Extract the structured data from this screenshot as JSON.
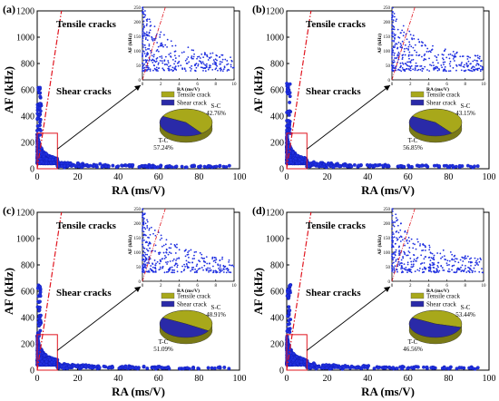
{
  "figure": {
    "colors": {
      "points": "#1f2fe0",
      "points_edge": "#0d17a8",
      "accent_red": "#e0141e",
      "pie_tensile": "#a8a81a",
      "pie_shear": "#2a2aa8",
      "axis": "#000000"
    },
    "labels": {
      "tensile_region": "Tensile cracks",
      "shear_region": "Shear cracks"
    },
    "legend": {
      "tensile": "Tensile crack",
      "shear": "Shear crack"
    }
  },
  "chart_data": [
    {
      "panel": "(a)",
      "type": "scatter",
      "xlabel": "RA (ms/V)",
      "ylabel": "AF (kHz)",
      "xlim": [
        0,
        100
      ],
      "ylim": [
        0,
        1200
      ],
      "xticks": [
        "0",
        "20",
        "40",
        "60",
        "80",
        "100"
      ],
      "yticks": [
        "0",
        "200",
        "400",
        "600",
        "800",
        "1000",
        "1200"
      ],
      "divider_slope_kHz_per_msV": 100,
      "inset": {
        "type": "scatter",
        "xlabel": "RA (ms/V)",
        "ylabel": "AF (kHz)",
        "xlim": [
          0,
          10
        ],
        "ylim": [
          0,
          250
        ],
        "xticks": [
          "0",
          "2",
          "4",
          "6",
          "8",
          "10"
        ],
        "yticks": [
          "0",
          "50",
          "100",
          "150",
          "200",
          "250"
        ]
      },
      "pie": {
        "type": "pie",
        "slices": [
          {
            "label": "T-C",
            "percent": "57.24%",
            "value": 57.24
          },
          {
            "label": "S-C",
            "percent": "42.76%",
            "value": 42.76
          }
        ]
      },
      "seed": 11
    },
    {
      "panel": "(b)",
      "type": "scatter",
      "xlabel": "RA (ms/V)",
      "ylabel": "AF (kHz)",
      "xlim": [
        0,
        100
      ],
      "ylim": [
        0,
        1200
      ],
      "xticks": [
        "0",
        "20",
        "40",
        "60",
        "80",
        "100"
      ],
      "yticks": [
        "0",
        "200",
        "400",
        "600",
        "800",
        "1000",
        "1200"
      ],
      "divider_slope_kHz_per_msV": 100,
      "inset": {
        "type": "scatter",
        "xlabel": "RA (ms/V)",
        "ylabel": "AF (kHz)",
        "xlim": [
          0,
          10
        ],
        "ylim": [
          0,
          250
        ],
        "xticks": [
          "0",
          "2",
          "4",
          "6",
          "8",
          "10"
        ],
        "yticks": [
          "0",
          "50",
          "100",
          "150",
          "200",
          "250"
        ]
      },
      "pie": {
        "type": "pie",
        "slices": [
          {
            "label": "T-C",
            "percent": "56.85%",
            "value": 56.85
          },
          {
            "label": "S-C",
            "percent": "43.15%",
            "value": 43.15
          }
        ]
      },
      "seed": 23
    },
    {
      "panel": "(c)",
      "type": "scatter",
      "xlabel": "RA (ms/V)",
      "ylabel": "AF (kHz)",
      "xlim": [
        0,
        100
      ],
      "ylim": [
        0,
        1200
      ],
      "xticks": [
        "0",
        "20",
        "40",
        "60",
        "80",
        "100"
      ],
      "yticks": [
        "0",
        "200",
        "400",
        "600",
        "800",
        "1000",
        "1200"
      ],
      "divider_slope_kHz_per_msV": 100,
      "inset": {
        "type": "scatter",
        "xlabel": "RA (ms/V)",
        "ylabel": "AF (kHz)",
        "xlim": [
          0,
          10
        ],
        "ylim": [
          0,
          250
        ],
        "xticks": [
          "0",
          "2",
          "4",
          "6",
          "8",
          "10"
        ],
        "yticks": [
          "0",
          "50",
          "100",
          "150",
          "200",
          "250"
        ]
      },
      "pie": {
        "type": "pie",
        "slices": [
          {
            "label": "T-C",
            "percent": "51.09%",
            "value": 51.09
          },
          {
            "label": "S-C",
            "percent": "48.91%",
            "value": 48.91
          }
        ]
      },
      "seed": 37
    },
    {
      "panel": "(d)",
      "type": "scatter",
      "xlabel": "RA (ms/V)",
      "ylabel": "AF (kHz)",
      "xlim": [
        0,
        100
      ],
      "ylim": [
        0,
        1200
      ],
      "xticks": [
        "0",
        "20",
        "40",
        "60",
        "80",
        "100"
      ],
      "yticks": [
        "0",
        "200",
        "400",
        "600",
        "800",
        "1000",
        "1200"
      ],
      "divider_slope_kHz_per_msV": 100,
      "inset": {
        "type": "scatter",
        "xlabel": "RA (ms/V)",
        "ylabel": "AF (kHz)",
        "xlim": [
          0,
          10
        ],
        "ylim": [
          0,
          250
        ],
        "xticks": [
          "0",
          "2",
          "4",
          "6",
          "8",
          "10"
        ],
        "yticks": [
          "0",
          "50",
          "100",
          "150",
          "200",
          "250"
        ]
      },
      "pie": {
        "type": "pie",
        "slices": [
          {
            "label": "T-C",
            "percent": "46.56%",
            "value": 46.56
          },
          {
            "label": "S-C",
            "percent": "53.44%",
            "value": 53.44
          }
        ]
      },
      "seed": 51
    }
  ]
}
